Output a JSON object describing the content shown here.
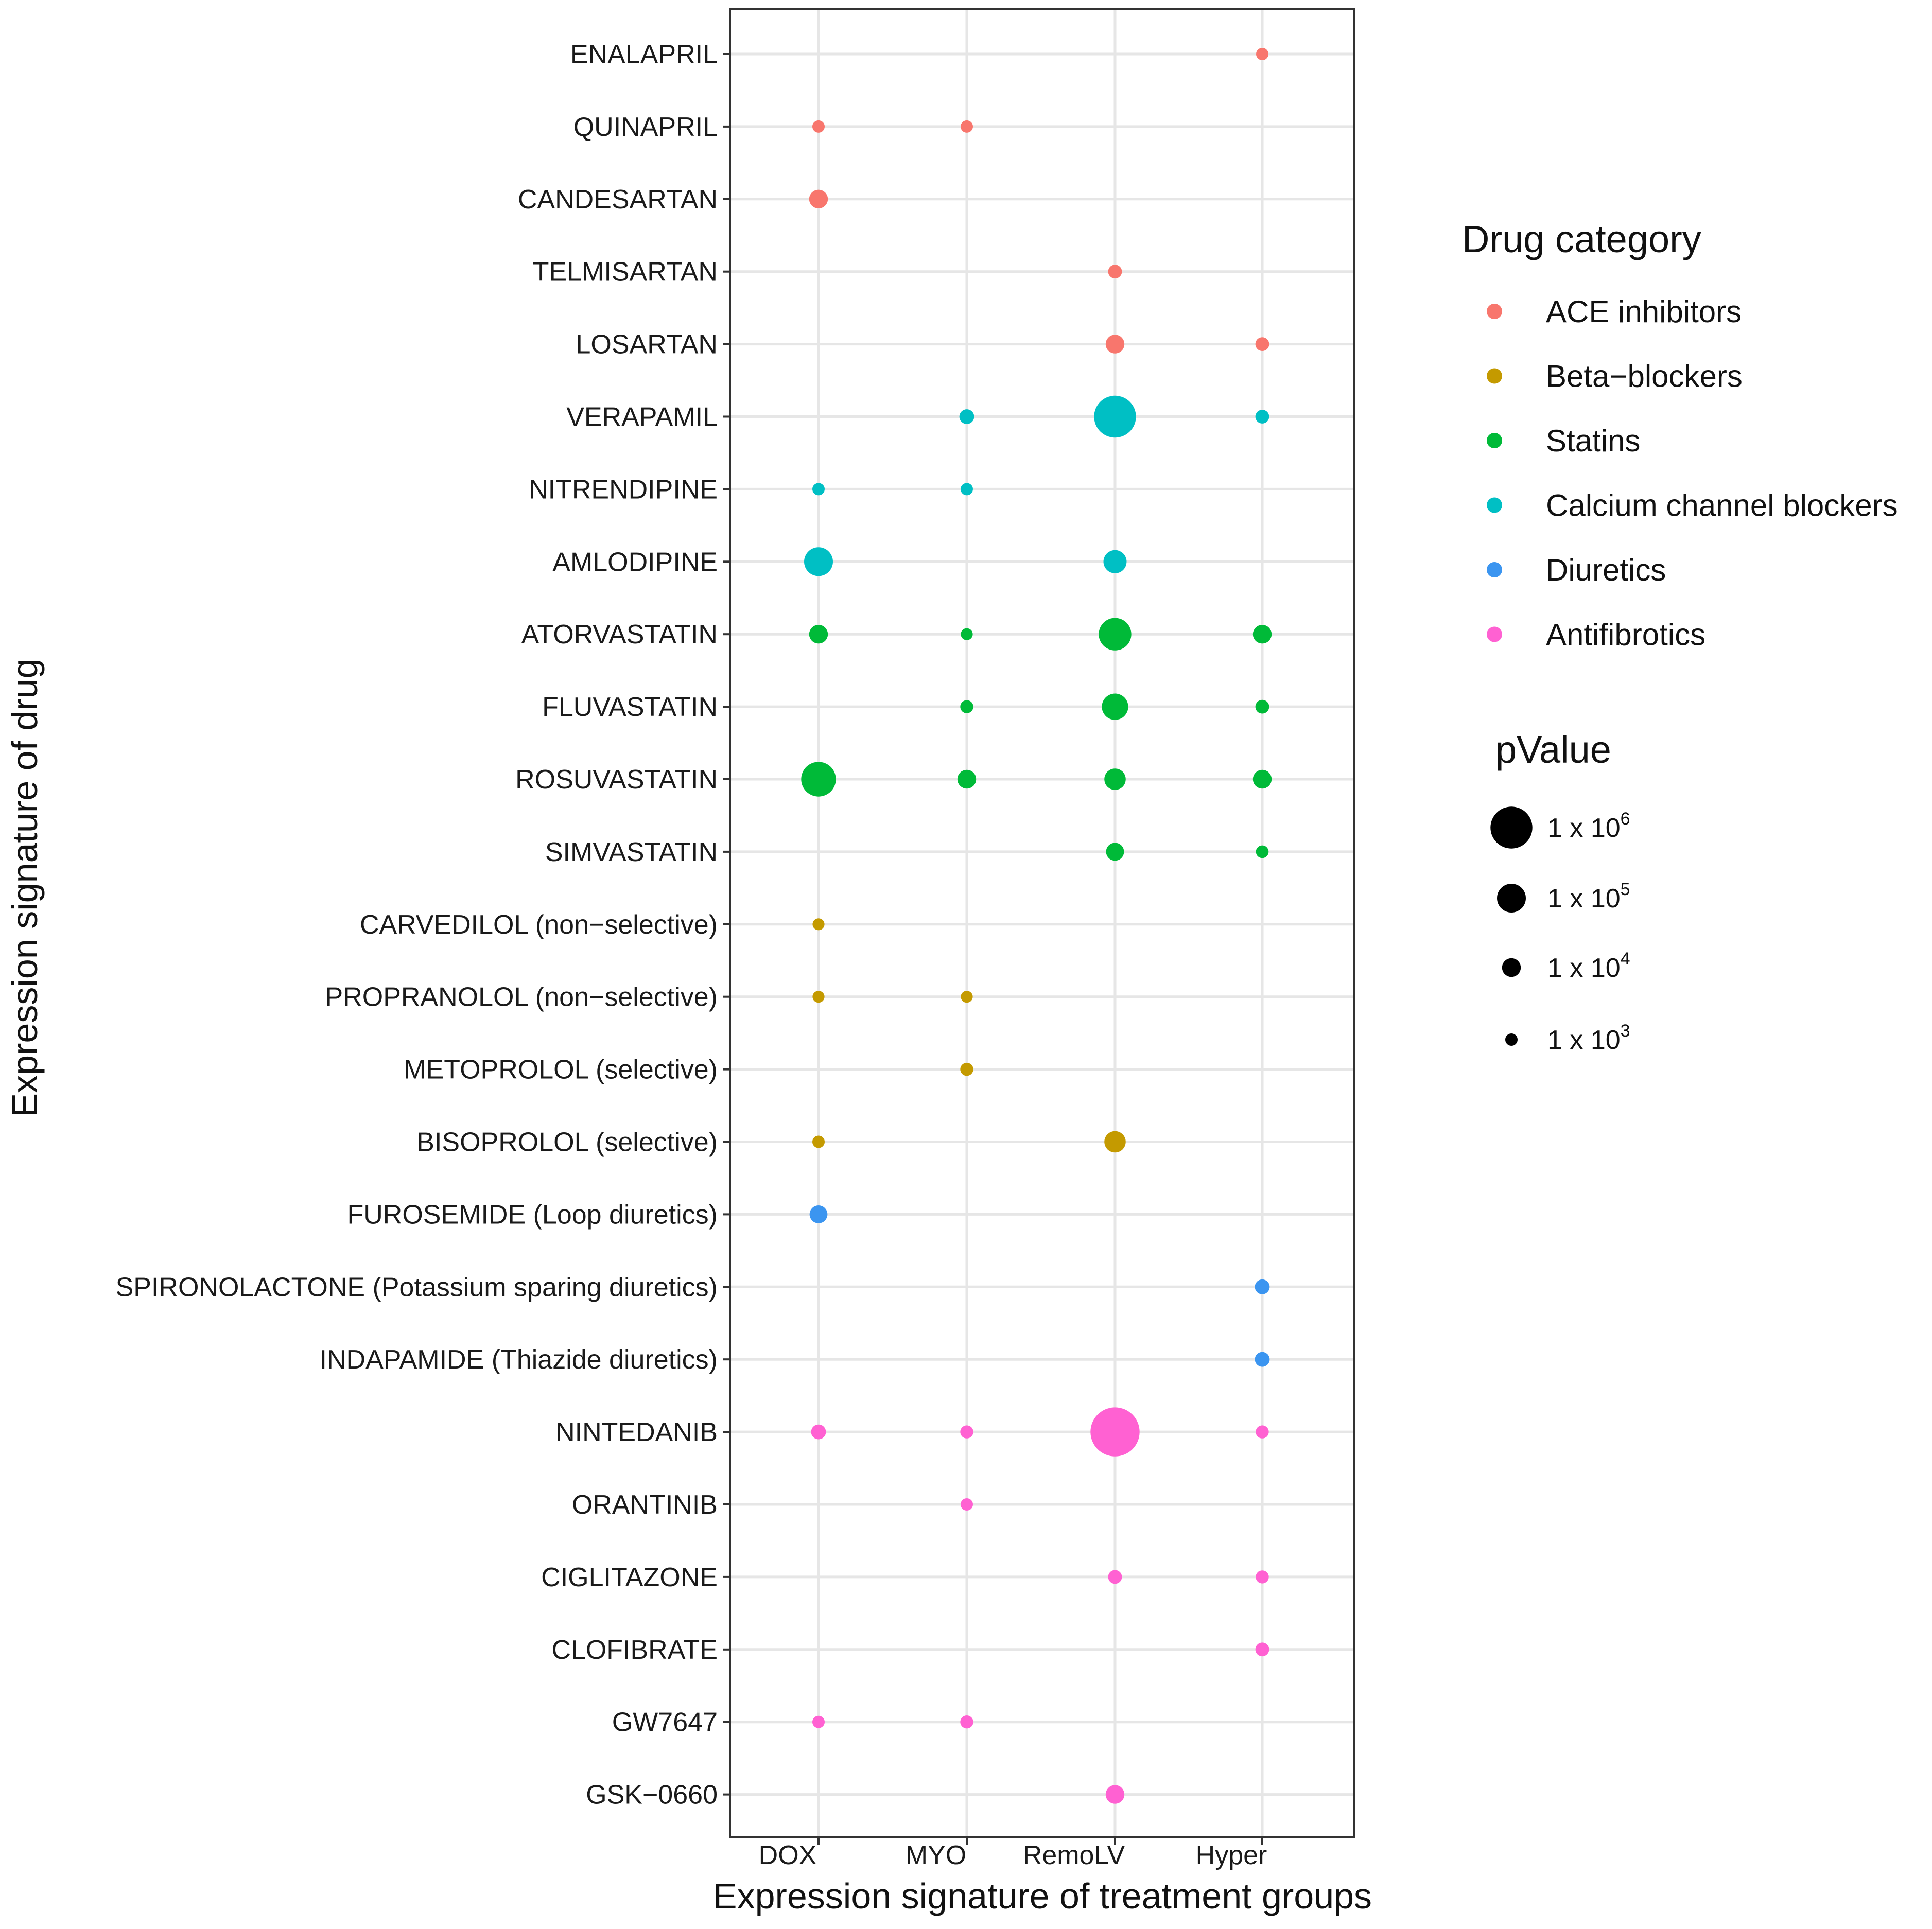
{
  "chart_data": {
    "type": "scatter",
    "subtype": "dot-plot",
    "xlabel": "Expression signature of treatment groups",
    "ylabel": "Expression signature of drug",
    "groups": [
      "DOX",
      "MYO",
      "RemoLV",
      "Hyper"
    ],
    "categories": [
      {
        "name": "ACE inhibitors",
        "color": "#F8766D"
      },
      {
        "name": "Beta−blockers",
        "color": "#C49A00"
      },
      {
        "name": "Statins",
        "color": "#00BA38"
      },
      {
        "name": "Calcium channel blockers",
        "color": "#00BFC4"
      },
      {
        "name": "Diuretics",
        "color": "#3B95F0"
      },
      {
        "name": "Antifibrotics",
        "color": "#FF61D2"
      }
    ],
    "legend_title": "Drug category",
    "size_legend": {
      "title": "pValue",
      "entries": [
        {
          "base": "1 x 10",
          "exp": "6",
          "value": 1000000
        },
        {
          "base": "1 x 10",
          "exp": "5",
          "value": 100000
        },
        {
          "base": "1 x 10",
          "exp": "4",
          "value": 10000
        },
        {
          "base": "1 x 10",
          "exp": "3",
          "value": 1000
        }
      ]
    },
    "drugs": [
      {
        "label": "ENALAPRIL",
        "category": 0,
        "values": [
          null,
          null,
          null,
          1000
        ]
      },
      {
        "label": "QUINAPRIL",
        "category": 0,
        "values": [
          1000,
          1000,
          null,
          null
        ]
      },
      {
        "label": "CANDESARTAN",
        "category": 0,
        "values": [
          10000,
          null,
          null,
          null
        ]
      },
      {
        "label": "TELMISARTAN",
        "category": 0,
        "values": [
          null,
          null,
          2000,
          null
        ]
      },
      {
        "label": "LOSARTAN",
        "category": 0,
        "values": [
          null,
          null,
          10000,
          2000
        ]
      },
      {
        "label": "VERAPAMIL",
        "category": 3,
        "values": [
          null,
          3000,
          1000000,
          2000
        ]
      },
      {
        "label": "NITRENDIPINE",
        "category": 3,
        "values": [
          1000,
          1000,
          null,
          null
        ]
      },
      {
        "label": "AMLODIPINE",
        "category": 3,
        "values": [
          100000,
          null,
          30000,
          null
        ]
      },
      {
        "label": "ATORVASTATIN",
        "category": 2,
        "values": [
          10000,
          800,
          200000,
          10000
        ]
      },
      {
        "label": "FLUVASTATIN",
        "category": 2,
        "values": [
          null,
          1500,
          60000,
          2000
        ]
      },
      {
        "label": "ROSUVASTATIN",
        "category": 2,
        "values": [
          300000,
          10000,
          20000,
          10000
        ]
      },
      {
        "label": "SIMVASTATIN",
        "category": 2,
        "values": [
          null,
          null,
          8000,
          1200
        ]
      },
      {
        "label": "CARVEDILOL (non−selective)",
        "category": 1,
        "values": [
          800,
          null,
          null,
          null
        ]
      },
      {
        "label": "PROPRANOLOL (non−selective)",
        "category": 1,
        "values": [
          800,
          800,
          null,
          null
        ]
      },
      {
        "label": "METOPROLOL (selective)",
        "category": 1,
        "values": [
          null,
          1500,
          null,
          null
        ]
      },
      {
        "label": "BISOPROLOL (selective)",
        "category": 1,
        "values": [
          1000,
          null,
          20000,
          null
        ]
      },
      {
        "label": "FUROSEMIDE (Loop diuretics)",
        "category": 4,
        "values": [
          8000,
          null,
          null,
          null
        ]
      },
      {
        "label": "SPIRONOLACTONE (Potassium sparing diuretics)",
        "category": 4,
        "values": [
          null,
          null,
          null,
          3000
        ]
      },
      {
        "label": "INDAPAMIDE (Thiazide diuretics)",
        "category": 4,
        "values": [
          null,
          null,
          null,
          3000
        ]
      },
      {
        "label": "NINTEDANIB",
        "category": 5,
        "values": [
          3000,
          1500,
          3000000,
          1500
        ]
      },
      {
        "label": "ORANTINIB",
        "category": 5,
        "values": [
          null,
          1000,
          null,
          null
        ]
      },
      {
        "label": "CIGLITAZONE",
        "category": 5,
        "values": [
          null,
          null,
          2000,
          1500
        ]
      },
      {
        "label": "CLOFIBRATE",
        "category": 5,
        "values": [
          null,
          null,
          null,
          2000
        ]
      },
      {
        "label": "GW7647",
        "category": 5,
        "values": [
          1000,
          1500,
          null,
          null
        ]
      },
      {
        "label": "GSK−0660",
        "category": 5,
        "values": [
          null,
          null,
          10000,
          null
        ]
      }
    ]
  }
}
